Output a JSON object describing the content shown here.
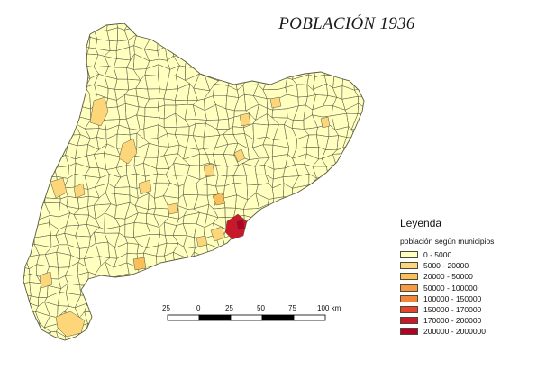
{
  "title": "POBLACIÓN 1936",
  "legend": {
    "title": "Leyenda",
    "subtitle": "población según municipios",
    "classes": [
      {
        "label": "0 - 5000",
        "color": "#ffffc0"
      },
      {
        "label": "5000 - 20000",
        "color": "#fdd67a"
      },
      {
        "label": "20000 - 50000",
        "color": "#fbbf59"
      },
      {
        "label": "50000 - 100000",
        "color": "#f89a45"
      },
      {
        "label": "100000 - 150000",
        "color": "#f2873c"
      },
      {
        "label": "150000 - 170000",
        "color": "#e4452c"
      },
      {
        "label": "170000 - 200000",
        "color": "#c8182a"
      },
      {
        "label": "200000 - 2000000",
        "color": "#b50026"
      }
    ]
  },
  "scale_bar": {
    "labels": [
      "25",
      "0",
      "25",
      "50",
      "75",
      "100 km"
    ]
  },
  "colors": {
    "municipality_border": "#5a5a42",
    "region_fill": "#ffffc0"
  }
}
